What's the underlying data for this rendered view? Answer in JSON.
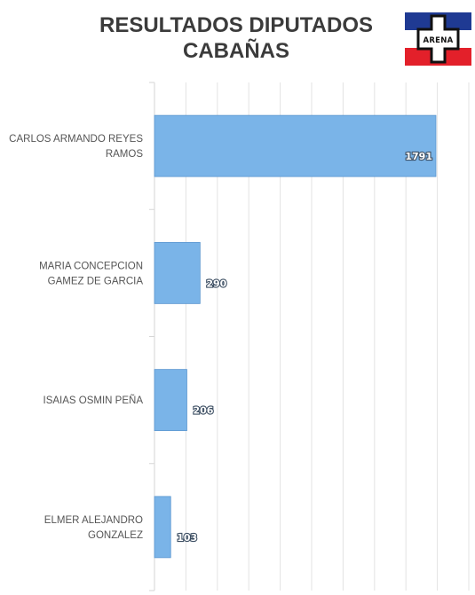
{
  "header": {
    "title_line1": "RESULTADOS DIPUTADOS",
    "title_line2": "CABAÑAS"
  },
  "logo": {
    "text": "ARENA",
    "colors": {
      "blue": "#1f3a93",
      "red": "#e3202a",
      "white": "#ffffff",
      "black": "#111111"
    }
  },
  "chart_data": {
    "type": "bar",
    "orientation": "horizontal",
    "categories": [
      [
        "CARLOS ARMANDO REYES",
        "RAMOS"
      ],
      [
        "MARIA CONCEPCION",
        "GAMEZ DE GARCIA"
      ],
      [
        "ISAIAS OSMIN PEÑA"
      ],
      [
        "ELMER ALEJANDRO",
        "GONZALEZ"
      ]
    ],
    "values": [
      1791,
      290,
      206,
      103
    ],
    "data_labels": [
      "1791",
      "290",
      "206",
      "103"
    ],
    "xlim": [
      0,
      2000
    ],
    "grid": true,
    "legend": "none",
    "bar_color": "#7ab4e8",
    "bar_edge_color": "#5a95cf"
  }
}
